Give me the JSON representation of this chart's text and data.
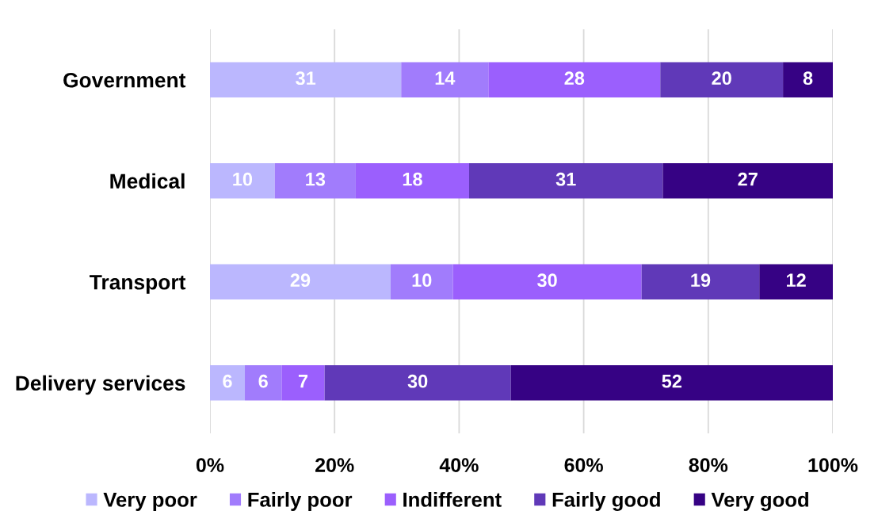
{
  "chart_data": {
    "type": "bar",
    "orientation": "horizontal",
    "stacked": true,
    "categories": [
      "Government",
      "Medical",
      "Transport",
      "Delivery services"
    ],
    "series": [
      {
        "name": "Very poor",
        "color": "#bbb7fe",
        "values": [
          30.7,
          10.4,
          29.0,
          5.6
        ],
        "value_labels": [
          "31",
          "10",
          "29",
          "6"
        ]
      },
      {
        "name": "Fairly poor",
        "color": "#a17cfc",
        "values": [
          14.0,
          13.0,
          10.0,
          5.9
        ],
        "value_labels": [
          "14",
          "13",
          "10",
          "6"
        ]
      },
      {
        "name": "Indifferent",
        "color": "#9b5ffd",
        "values": [
          27.6,
          18.2,
          30.3,
          6.9
        ],
        "value_labels": [
          "28",
          "18",
          "30",
          "7"
        ]
      },
      {
        "name": "Fairly good",
        "color": "#6039b8",
        "values": [
          19.7,
          31.1,
          18.9,
          29.9
        ],
        "value_labels": [
          "20",
          "31",
          "19",
          "30"
        ]
      },
      {
        "name": "Very good",
        "color": "#360284",
        "values": [
          8.0,
          27.3,
          11.8,
          51.7
        ],
        "value_labels": [
          "8",
          "27",
          "12",
          "52"
        ]
      }
    ],
    "xlim": [
      0,
      100
    ],
    "xticks": [
      {
        "value": 0,
        "label": "0%"
      },
      {
        "value": 20,
        "label": "20%"
      },
      {
        "value": 40,
        "label": "40%"
      },
      {
        "value": 60,
        "label": "60%"
      },
      {
        "value": 80,
        "label": "80%"
      },
      {
        "value": 100,
        "label": "100%"
      }
    ],
    "grid": "x",
    "legend": "bottom"
  }
}
